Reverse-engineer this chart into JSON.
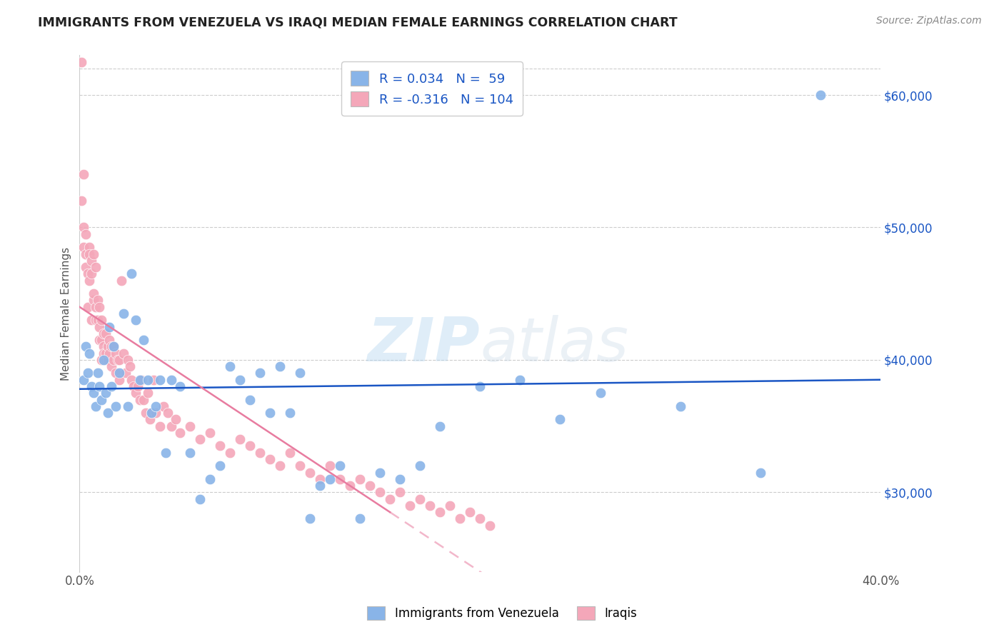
{
  "title": "IMMIGRANTS FROM VENEZUELA VS IRAQI MEDIAN FEMALE EARNINGS CORRELATION CHART",
  "source": "Source: ZipAtlas.com",
  "ylabel": "Median Female Earnings",
  "xlim": [
    0.0,
    0.4
  ],
  "ylim": [
    24000,
    63000
  ],
  "xtick_positions": [
    0.0,
    0.05,
    0.1,
    0.15,
    0.2,
    0.25,
    0.3,
    0.35,
    0.4
  ],
  "xtick_labels": [
    "0.0%",
    "",
    "",
    "",
    "",
    "",
    "",
    "",
    "40.0%"
  ],
  "yticks_right": [
    30000,
    40000,
    50000,
    60000
  ],
  "ytick_right_labels": [
    "$30,000",
    "$40,000",
    "$50,000",
    "$60,000"
  ],
  "blue_R": 0.034,
  "blue_N": 59,
  "pink_R": -0.316,
  "pink_N": 104,
  "blue_color": "#89b4e8",
  "pink_color": "#f4a7b9",
  "blue_line_color": "#1a56c4",
  "pink_line_color": "#e87ca0",
  "legend_blue_label": "Immigrants from Venezuela",
  "legend_pink_label": "Iraqis",
  "watermark_zip": "ZIP",
  "watermark_atlas": "atlas",
  "background_color": "#ffffff",
  "grid_color": "#cccccc",
  "venezuela_x": [
    0.002,
    0.003,
    0.004,
    0.005,
    0.006,
    0.007,
    0.008,
    0.009,
    0.01,
    0.011,
    0.012,
    0.013,
    0.014,
    0.015,
    0.016,
    0.017,
    0.018,
    0.02,
    0.022,
    0.024,
    0.026,
    0.028,
    0.03,
    0.032,
    0.034,
    0.036,
    0.038,
    0.04,
    0.043,
    0.046,
    0.05,
    0.055,
    0.06,
    0.065,
    0.07,
    0.075,
    0.08,
    0.085,
    0.09,
    0.095,
    0.1,
    0.105,
    0.11,
    0.115,
    0.12,
    0.125,
    0.13,
    0.14,
    0.15,
    0.16,
    0.17,
    0.18,
    0.2,
    0.22,
    0.24,
    0.26,
    0.3,
    0.34,
    0.37
  ],
  "venezuela_y": [
    38500,
    41000,
    39000,
    40500,
    38000,
    37500,
    36500,
    39000,
    38000,
    37000,
    40000,
    37500,
    36000,
    42500,
    38000,
    41000,
    36500,
    39000,
    43500,
    36500,
    46500,
    43000,
    38500,
    41500,
    38500,
    36000,
    36500,
    38500,
    33000,
    38500,
    38000,
    33000,
    29500,
    31000,
    32000,
    39500,
    38500,
    37000,
    39000,
    36000,
    39500,
    36000,
    39000,
    28000,
    30500,
    31000,
    32000,
    28000,
    31500,
    31000,
    32000,
    35000,
    38000,
    38500,
    35500,
    37500,
    36500,
    31500,
    60000
  ],
  "iraq_x": [
    0.001,
    0.001,
    0.002,
    0.002,
    0.002,
    0.003,
    0.003,
    0.003,
    0.004,
    0.004,
    0.005,
    0.005,
    0.005,
    0.006,
    0.006,
    0.006,
    0.007,
    0.007,
    0.007,
    0.008,
    0.008,
    0.008,
    0.009,
    0.009,
    0.01,
    0.01,
    0.01,
    0.011,
    0.011,
    0.011,
    0.012,
    0.012,
    0.012,
    0.013,
    0.013,
    0.013,
    0.014,
    0.014,
    0.015,
    0.015,
    0.016,
    0.016,
    0.017,
    0.017,
    0.018,
    0.018,
    0.019,
    0.02,
    0.02,
    0.021,
    0.022,
    0.023,
    0.024,
    0.025,
    0.026,
    0.027,
    0.028,
    0.029,
    0.03,
    0.031,
    0.032,
    0.033,
    0.034,
    0.035,
    0.036,
    0.037,
    0.038,
    0.04,
    0.042,
    0.044,
    0.046,
    0.048,
    0.05,
    0.055,
    0.06,
    0.065,
    0.07,
    0.075,
    0.08,
    0.085,
    0.09,
    0.095,
    0.1,
    0.105,
    0.11,
    0.115,
    0.12,
    0.125,
    0.13,
    0.135,
    0.14,
    0.145,
    0.15,
    0.155,
    0.16,
    0.165,
    0.17,
    0.175,
    0.18,
    0.185,
    0.19,
    0.195,
    0.2,
    0.205
  ],
  "iraq_y": [
    62500,
    52000,
    54000,
    50000,
    48500,
    47000,
    49500,
    48000,
    46500,
    44000,
    48500,
    46000,
    48000,
    46500,
    47500,
    43000,
    44500,
    48000,
    45000,
    43000,
    47000,
    44000,
    43000,
    44500,
    42500,
    44000,
    41500,
    43000,
    41500,
    40000,
    42000,
    41000,
    40500,
    42000,
    40000,
    40500,
    40000,
    41000,
    40500,
    41500,
    41000,
    39500,
    40000,
    41000,
    39000,
    40500,
    40000,
    38500,
    40000,
    46000,
    40500,
    39000,
    40000,
    39500,
    38500,
    38000,
    37500,
    38000,
    37000,
    38500,
    37000,
    36000,
    37500,
    35500,
    36000,
    38500,
    36000,
    35000,
    36500,
    36000,
    35000,
    35500,
    34500,
    35000,
    34000,
    34500,
    33500,
    33000,
    34000,
    33500,
    33000,
    32500,
    32000,
    33000,
    32000,
    31500,
    31000,
    32000,
    31000,
    30500,
    31000,
    30500,
    30000,
    29500,
    30000,
    29000,
    29500,
    29000,
    28500,
    29000,
    28000,
    28500,
    28000,
    27500
  ]
}
